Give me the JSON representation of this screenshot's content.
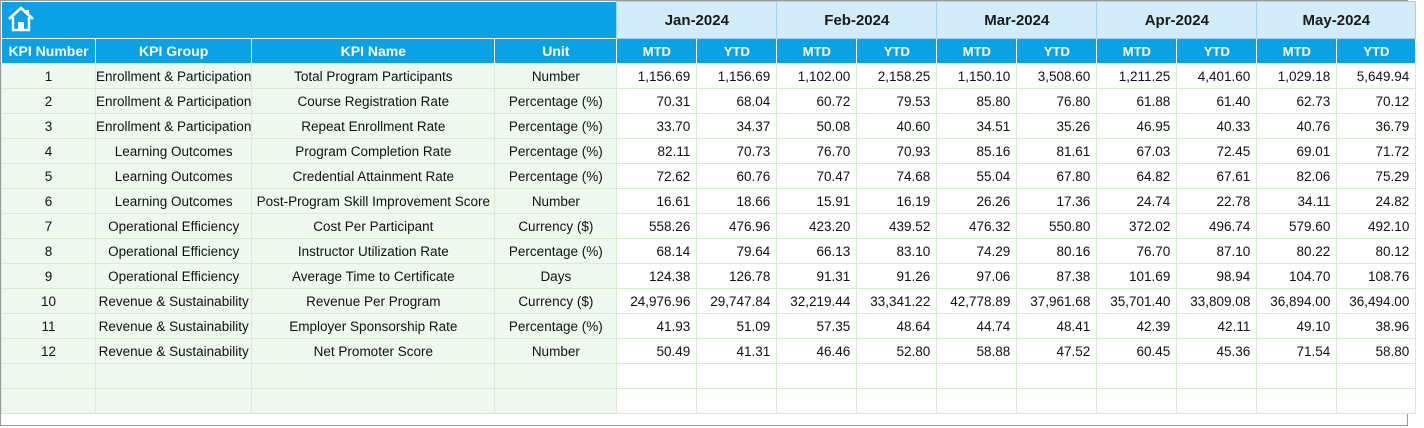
{
  "header": {
    "icon": "home-icon",
    "months": [
      "Jan-2024",
      "Feb-2024",
      "Mar-2024",
      "Apr-2024",
      "May-2024"
    ],
    "columns": [
      "KPI Number",
      "KPI Group",
      "KPI Name",
      "Unit"
    ],
    "mtd_label": "MTD",
    "ytd_label": "YTD"
  },
  "rows": [
    {
      "num": "1",
      "group": "Enrollment & Participation",
      "name": "Total Program Participants",
      "unit": "Number",
      "vals": [
        "1,156.69",
        "1,156.69",
        "1,102.00",
        "2,158.25",
        "1,150.10",
        "3,508.60",
        "1,211.25",
        "4,401.60",
        "1,029.18",
        "5,649.94"
      ]
    },
    {
      "num": "2",
      "group": "Enrollment & Participation",
      "name": "Course Registration Rate",
      "unit": "Percentage (%)",
      "vals": [
        "70.31",
        "68.04",
        "60.72",
        "79.53",
        "85.80",
        "76.80",
        "61.88",
        "61.40",
        "62.73",
        "70.12"
      ]
    },
    {
      "num": "3",
      "group": "Enrollment & Participation",
      "name": "Repeat Enrollment Rate",
      "unit": "Percentage (%)",
      "vals": [
        "33.70",
        "34.37",
        "50.08",
        "40.60",
        "34.51",
        "35.26",
        "46.95",
        "40.33",
        "40.76",
        "36.79"
      ]
    },
    {
      "num": "4",
      "group": "Learning Outcomes",
      "name": "Program Completion Rate",
      "unit": "Percentage (%)",
      "vals": [
        "82.11",
        "70.73",
        "76.70",
        "70.93",
        "85.16",
        "81.61",
        "67.03",
        "72.45",
        "69.01",
        "71.72"
      ]
    },
    {
      "num": "5",
      "group": "Learning Outcomes",
      "name": "Credential Attainment Rate",
      "unit": "Percentage (%)",
      "vals": [
        "72.62",
        "60.76",
        "70.47",
        "74.68",
        "55.04",
        "67.80",
        "64.82",
        "67.61",
        "82.06",
        "75.29"
      ]
    },
    {
      "num": "6",
      "group": "Learning Outcomes",
      "name": "Post-Program Skill Improvement Score",
      "unit": "Number",
      "vals": [
        "16.61",
        "18.66",
        "15.91",
        "16.19",
        "26.26",
        "17.36",
        "24.74",
        "22.78",
        "34.11",
        "24.82"
      ]
    },
    {
      "num": "7",
      "group": "Operational Efficiency",
      "name": "Cost Per Participant",
      "unit": "Currency ($)",
      "vals": [
        "558.26",
        "476.96",
        "423.20",
        "439.52",
        "476.32",
        "550.80",
        "372.02",
        "496.74",
        "579.60",
        "492.10"
      ]
    },
    {
      "num": "8",
      "group": "Operational Efficiency",
      "name": "Instructor Utilization Rate",
      "unit": "Percentage (%)",
      "vals": [
        "68.14",
        "79.64",
        "66.13",
        "83.10",
        "74.29",
        "80.16",
        "76.70",
        "87.10",
        "80.22",
        "80.12"
      ]
    },
    {
      "num": "9",
      "group": "Operational Efficiency",
      "name": "Average Time to Certificate",
      "unit": "Days",
      "vals": [
        "124.38",
        "126.78",
        "91.31",
        "91.26",
        "97.06",
        "87.38",
        "101.69",
        "98.94",
        "104.70",
        "108.76"
      ]
    },
    {
      "num": "10",
      "group": "Revenue & Sustainability",
      "name": "Revenue Per Program",
      "unit": "Currency ($)",
      "vals": [
        "24,976.96",
        "29,747.84",
        "32,219.44",
        "33,341.22",
        "42,778.89",
        "37,961.68",
        "35,701.40",
        "33,809.08",
        "36,894.00",
        "36,494.00"
      ]
    },
    {
      "num": "11",
      "group": "Revenue & Sustainability",
      "name": "Employer Sponsorship Rate",
      "unit": "Percentage (%)",
      "vals": [
        "41.93",
        "51.09",
        "57.35",
        "48.64",
        "44.74",
        "48.41",
        "42.39",
        "42.11",
        "49.10",
        "38.96"
      ]
    },
    {
      "num": "12",
      "group": "Revenue & Sustainability",
      "name": "Net Promoter Score",
      "unit": "Number",
      "vals": [
        "50.49",
        "41.31",
        "46.46",
        "52.80",
        "58.88",
        "47.52",
        "60.45",
        "45.36",
        "71.54",
        "58.80"
      ]
    }
  ]
}
